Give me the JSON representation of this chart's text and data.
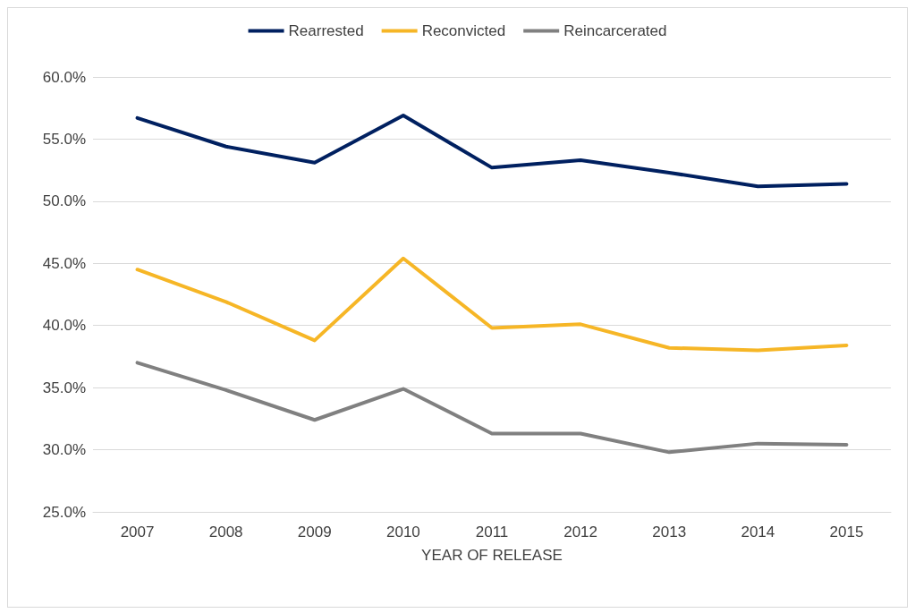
{
  "chart_data": {
    "type": "line",
    "xlabel": "YEAR OF RELEASE",
    "categories": [
      "2007",
      "2008",
      "2009",
      "2010",
      "2011",
      "2012",
      "2013",
      "2014",
      "2015"
    ],
    "series": [
      {
        "name": "Rearrested",
        "color": "#002060",
        "values": [
          56.7,
          54.4,
          53.1,
          56.9,
          52.7,
          53.3,
          52.3,
          51.2,
          51.4
        ]
      },
      {
        "name": "Reconvicted",
        "color": "#f6b626",
        "values": [
          44.5,
          41.9,
          38.8,
          45.4,
          39.8,
          40.1,
          38.2,
          38.0,
          38.4
        ]
      },
      {
        "name": "Reincarcerated",
        "color": "#808080",
        "values": [
          37.0,
          34.8,
          32.4,
          34.9,
          31.3,
          31.3,
          29.8,
          30.5,
          30.4
        ]
      }
    ],
    "ylim": [
      25,
      60
    ],
    "yticks": [
      {
        "value": 25,
        "label": "25.0%"
      },
      {
        "value": 30,
        "label": "30.0%"
      },
      {
        "value": 35,
        "label": "35.0%"
      },
      {
        "value": 40,
        "label": "40.0%"
      },
      {
        "value": 45,
        "label": "45.0%"
      },
      {
        "value": 50,
        "label": "50.0%"
      },
      {
        "value": 55,
        "label": "55.0%"
      },
      {
        "value": 60,
        "label": "60.0%"
      }
    ],
    "grid": "y",
    "legend": "top",
    "marker": "none",
    "line_style": "solid"
  }
}
